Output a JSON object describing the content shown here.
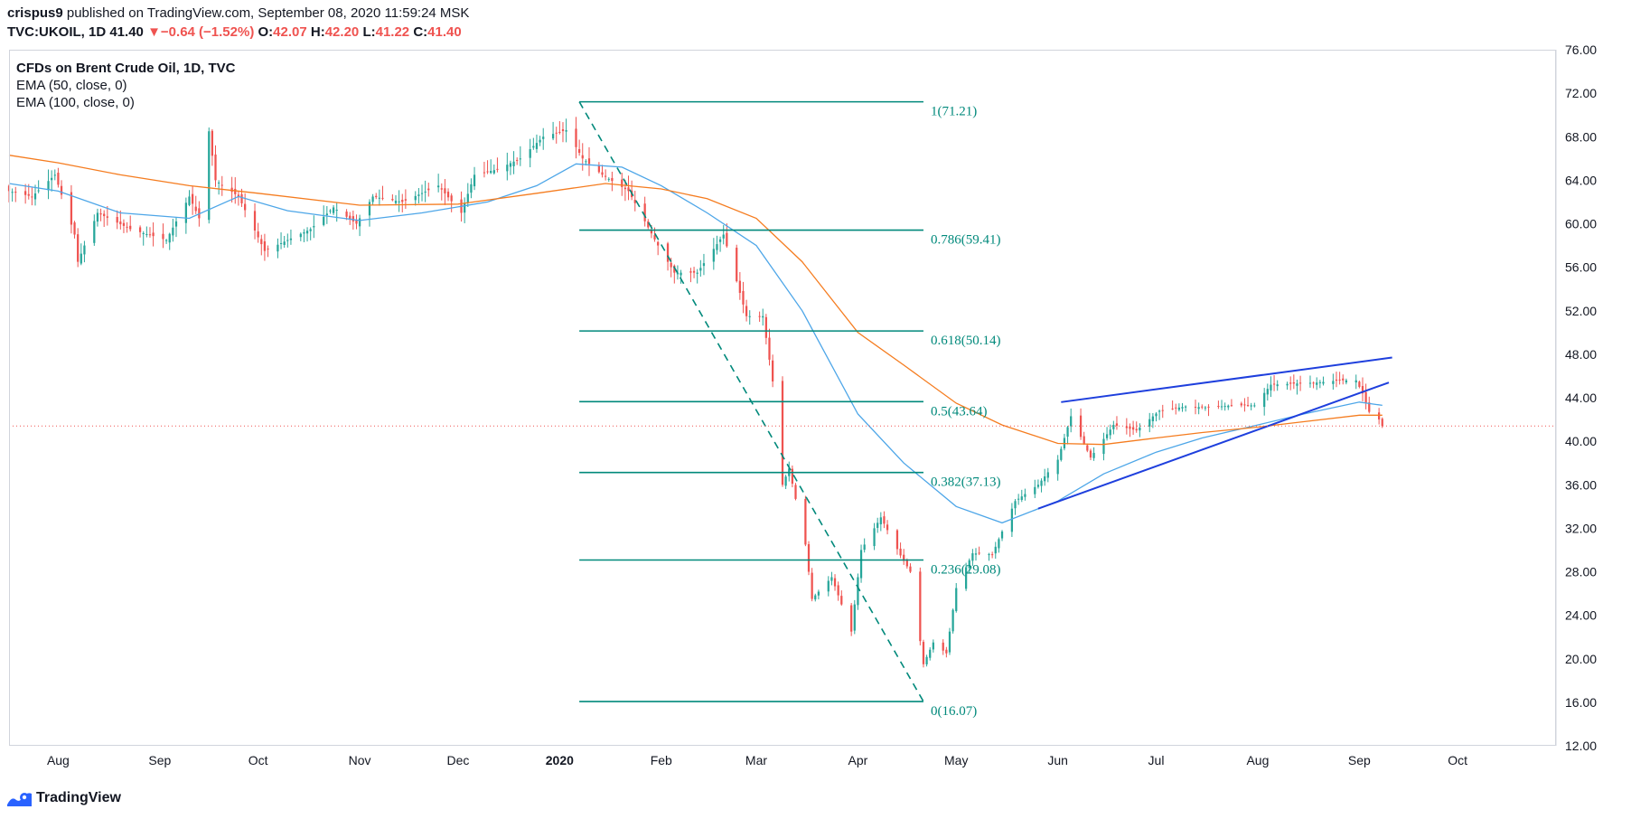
{
  "header": {
    "author": "crispus9",
    "published_text": " published on TradingView.com, September 08, 2020 11:59:24 MSK",
    "symbol": "TVC:UKOIL, 1D",
    "last": "41.40",
    "change_arrow": "▼",
    "change": "−0.64 (−1.52%)",
    "o_label": "O:",
    "o_val": "42.07",
    "h_label": "H:",
    "h_val": "42.20",
    "l_label": "L:",
    "l_val": "41.22",
    "c_label": "C:",
    "c_val": "41.40"
  },
  "legend": {
    "title": "CFDs on Brent Crude Oil, 1D, TVC",
    "ema50": "EMA (50, close, 0)",
    "ema100": "EMA (100, close, 0)"
  },
  "colors": {
    "up": "#26a69a",
    "down": "#ef5350",
    "ema50": "#4da6e8",
    "ema100": "#f57c1f",
    "fib": "#00897b",
    "trend": "#1e3fdd",
    "last_price_line": "#ef5350"
  },
  "brand": {
    "name": "TradingView"
  },
  "chart_data": {
    "type": "candlestick",
    "y_axis_side": "right",
    "ylim": [
      12,
      76
    ],
    "y_ticks": [
      "76.00",
      "72.00",
      "68.00",
      "64.00",
      "60.00",
      "56.00",
      "52.00",
      "48.00",
      "44.00",
      "40.00",
      "36.00",
      "32.00",
      "28.00",
      "24.00",
      "20.00",
      "16.00",
      "12.00"
    ],
    "x_ticks": [
      {
        "label": "Aug",
        "date": "2019-08-01"
      },
      {
        "label": "Sep",
        "date": "2019-09-01"
      },
      {
        "label": "Oct",
        "date": "2019-10-01"
      },
      {
        "label": "Nov",
        "date": "2019-11-01"
      },
      {
        "label": "Dec",
        "date": "2019-12-01"
      },
      {
        "label": "2020",
        "date": "2020-01-01",
        "bold": true
      },
      {
        "label": "Feb",
        "date": "2020-02-01"
      },
      {
        "label": "Mar",
        "date": "2020-03-01"
      },
      {
        "label": "Apr",
        "date": "2020-04-01"
      },
      {
        "label": "May",
        "date": "2020-05-01"
      },
      {
        "label": "Jun",
        "date": "2020-06-01"
      },
      {
        "label": "Jul",
        "date": "2020-07-01"
      },
      {
        "label": "Aug",
        "date": "2020-08-01"
      },
      {
        "label": "Sep",
        "date": "2020-09-01"
      },
      {
        "label": "Oct",
        "date": "2020-10-01"
      }
    ],
    "x_range": [
      "2019-07-17",
      "2020-10-31"
    ],
    "close_path": [
      {
        "date": "2019-07-17",
        "close": 63.0
      },
      {
        "date": "2019-07-24",
        "close": 62.5
      },
      {
        "date": "2019-07-31",
        "close": 64.5
      },
      {
        "date": "2019-08-06",
        "close": 59.0
      },
      {
        "date": "2019-08-07",
        "close": 56.5
      },
      {
        "date": "2019-08-13",
        "close": 61.0
      },
      {
        "date": "2019-08-23",
        "close": 59.5
      },
      {
        "date": "2019-09-03",
        "close": 58.5
      },
      {
        "date": "2019-09-10",
        "close": 62.5
      },
      {
        "date": "2019-09-13",
        "close": 60.5
      },
      {
        "date": "2019-09-16",
        "close": 68.5
      },
      {
        "date": "2019-09-18",
        "close": 64.0
      },
      {
        "date": "2019-09-25",
        "close": 62.5
      },
      {
        "date": "2019-10-03",
        "close": 57.5
      },
      {
        "date": "2019-10-10",
        "close": 58.5
      },
      {
        "date": "2019-10-17",
        "close": 59.5
      },
      {
        "date": "2019-10-24",
        "close": 61.5
      },
      {
        "date": "2019-10-31",
        "close": 60.0
      },
      {
        "date": "2019-11-05",
        "close": 62.5
      },
      {
        "date": "2019-11-14",
        "close": 62.0
      },
      {
        "date": "2019-11-25",
        "close": 63.5
      },
      {
        "date": "2019-12-02",
        "close": 61.0
      },
      {
        "date": "2019-12-06",
        "close": 64.5
      },
      {
        "date": "2019-12-13",
        "close": 65.0
      },
      {
        "date": "2019-12-20",
        "close": 66.0
      },
      {
        "date": "2019-12-27",
        "close": 68.0
      },
      {
        "date": "2020-01-03",
        "close": 68.6
      },
      {
        "date": "2020-01-08",
        "close": 66.0
      },
      {
        "date": "2020-01-14",
        "close": 64.5
      },
      {
        "date": "2020-01-22",
        "close": 63.0
      },
      {
        "date": "2020-01-31",
        "close": 58.0
      },
      {
        "date": "2020-02-05",
        "close": 55.5
      },
      {
        "date": "2020-02-12",
        "close": 55.5
      },
      {
        "date": "2020-02-20",
        "close": 59.0
      },
      {
        "date": "2020-02-27",
        "close": 51.5
      },
      {
        "date": "2020-03-03",
        "close": 51.5
      },
      {
        "date": "2020-03-06",
        "close": 45.5
      },
      {
        "date": "2020-03-09",
        "close": 36.0
      },
      {
        "date": "2020-03-11",
        "close": 37.5
      },
      {
        "date": "2020-03-16",
        "close": 30.5
      },
      {
        "date": "2020-03-18",
        "close": 25.5
      },
      {
        "date": "2020-03-24",
        "close": 27.5
      },
      {
        "date": "2020-03-30",
        "close": 22.5
      },
      {
        "date": "2020-04-02",
        "close": 30.0
      },
      {
        "date": "2020-04-08",
        "close": 33.0
      },
      {
        "date": "2020-04-14",
        "close": 29.5
      },
      {
        "date": "2020-04-17",
        "close": 28.0
      },
      {
        "date": "2020-04-21",
        "close": 19.5
      },
      {
        "date": "2020-04-24",
        "close": 21.5
      },
      {
        "date": "2020-04-28",
        "close": 20.5
      },
      {
        "date": "2020-05-01",
        "close": 26.5
      },
      {
        "date": "2020-05-06",
        "close": 29.7
      },
      {
        "date": "2020-05-12",
        "close": 29.6
      },
      {
        "date": "2020-05-19",
        "close": 34.5
      },
      {
        "date": "2020-05-26",
        "close": 36.0
      },
      {
        "date": "2020-06-01",
        "close": 38.3
      },
      {
        "date": "2020-06-05",
        "close": 42.3
      },
      {
        "date": "2020-06-11",
        "close": 38.5
      },
      {
        "date": "2020-06-18",
        "close": 41.5
      },
      {
        "date": "2020-06-25",
        "close": 41.0
      },
      {
        "date": "2020-07-02",
        "close": 42.8
      },
      {
        "date": "2020-07-10",
        "close": 43.2
      },
      {
        "date": "2020-07-17",
        "close": 43.1
      },
      {
        "date": "2020-07-24",
        "close": 43.3
      },
      {
        "date": "2020-07-31",
        "close": 43.3
      },
      {
        "date": "2020-08-05",
        "close": 45.2
      },
      {
        "date": "2020-08-12",
        "close": 45.3
      },
      {
        "date": "2020-08-19",
        "close": 45.4
      },
      {
        "date": "2020-08-26",
        "close": 45.6
      },
      {
        "date": "2020-08-31",
        "close": 45.6
      },
      {
        "date": "2020-09-02",
        "close": 44.4
      },
      {
        "date": "2020-09-04",
        "close": 42.7
      },
      {
        "date": "2020-09-07",
        "close": 42.0
      },
      {
        "date": "2020-09-08",
        "close": 41.4
      }
    ],
    "series": [
      {
        "name": "EMA (50, close, 0)",
        "color": "#4da6e8",
        "points": [
          {
            "date": "2019-07-17",
            "value": 63.7
          },
          {
            "date": "2019-08-01",
            "value": 63.0
          },
          {
            "date": "2019-08-20",
            "value": 61.0
          },
          {
            "date": "2019-09-10",
            "value": 60.5
          },
          {
            "date": "2019-09-25",
            "value": 62.5
          },
          {
            "date": "2019-10-10",
            "value": 61.2
          },
          {
            "date": "2019-11-01",
            "value": 60.3
          },
          {
            "date": "2019-11-20",
            "value": 61.0
          },
          {
            "date": "2019-12-10",
            "value": 62.0
          },
          {
            "date": "2019-12-25",
            "value": 63.5
          },
          {
            "date": "2020-01-06",
            "value": 65.5
          },
          {
            "date": "2020-01-20",
            "value": 65.2
          },
          {
            "date": "2020-02-01",
            "value": 63.5
          },
          {
            "date": "2020-02-15",
            "value": 61.0
          },
          {
            "date": "2020-03-01",
            "value": 58.0
          },
          {
            "date": "2020-03-15",
            "value": 52.0
          },
          {
            "date": "2020-04-01",
            "value": 42.5
          },
          {
            "date": "2020-04-15",
            "value": 38.0
          },
          {
            "date": "2020-05-01",
            "value": 34.0
          },
          {
            "date": "2020-05-15",
            "value": 32.5
          },
          {
            "date": "2020-06-01",
            "value": 34.5
          },
          {
            "date": "2020-06-15",
            "value": 37.0
          },
          {
            "date": "2020-07-01",
            "value": 39.0
          },
          {
            "date": "2020-07-15",
            "value": 40.3
          },
          {
            "date": "2020-08-01",
            "value": 41.5
          },
          {
            "date": "2020-08-15",
            "value": 42.5
          },
          {
            "date": "2020-09-01",
            "value": 43.6
          },
          {
            "date": "2020-09-08",
            "value": 43.3
          }
        ]
      },
      {
        "name": "EMA (100, close, 0)",
        "color": "#f57c1f",
        "points": [
          {
            "date": "2019-07-17",
            "value": 66.3
          },
          {
            "date": "2019-08-01",
            "value": 65.6
          },
          {
            "date": "2019-08-20",
            "value": 64.5
          },
          {
            "date": "2019-09-10",
            "value": 63.5
          },
          {
            "date": "2019-10-01",
            "value": 62.8
          },
          {
            "date": "2019-11-01",
            "value": 61.7
          },
          {
            "date": "2019-12-01",
            "value": 61.8
          },
          {
            "date": "2019-12-25",
            "value": 62.8
          },
          {
            "date": "2020-01-15",
            "value": 63.7
          },
          {
            "date": "2020-02-01",
            "value": 63.2
          },
          {
            "date": "2020-02-15",
            "value": 62.3
          },
          {
            "date": "2020-03-01",
            "value": 60.5
          },
          {
            "date": "2020-03-15",
            "value": 56.5
          },
          {
            "date": "2020-04-01",
            "value": 50.0
          },
          {
            "date": "2020-04-15",
            "value": 47.0
          },
          {
            "date": "2020-05-01",
            "value": 43.5
          },
          {
            "date": "2020-05-15",
            "value": 41.5
          },
          {
            "date": "2020-06-01",
            "value": 39.8
          },
          {
            "date": "2020-06-15",
            "value": 39.7
          },
          {
            "date": "2020-07-01",
            "value": 40.3
          },
          {
            "date": "2020-07-15",
            "value": 40.8
          },
          {
            "date": "2020-08-01",
            "value": 41.3
          },
          {
            "date": "2020-08-15",
            "value": 41.8
          },
          {
            "date": "2020-09-01",
            "value": 42.4
          },
          {
            "date": "2020-09-08",
            "value": 42.4
          }
        ]
      }
    ],
    "fibonacci": {
      "start_date": "2020-01-07",
      "end_date": "2020-04-21",
      "levels": [
        {
          "label": "1(71.21)",
          "value": 71.21
        },
        {
          "label": "0.786(59.41)",
          "value": 59.41
        },
        {
          "label": "0.618(50.14)",
          "value": 50.14
        },
        {
          "label": "0.5(43.64)",
          "value": 43.64
        },
        {
          "label": "0.382(37.13)",
          "value": 37.13
        },
        {
          "label": "0.236(29.08)",
          "value": 29.08
        },
        {
          "label": "0(16.07)",
          "value": 16.07
        }
      ],
      "trend_line": [
        {
          "date": "2020-01-07",
          "value": 71.21
        },
        {
          "date": "2020-04-21",
          "value": 16.07
        }
      ]
    },
    "trend_lines": [
      {
        "from": {
          "date": "2020-06-02",
          "value": 43.6
        },
        "to": {
          "date": "2020-09-11",
          "value": 47.7
        }
      },
      {
        "from": {
          "date": "2020-05-26",
          "value": 33.8
        },
        "to": {
          "date": "2020-09-10",
          "value": 45.4
        }
      }
    ],
    "last_price": 41.4,
    "grid": false,
    "legend_position": "top-left"
  }
}
